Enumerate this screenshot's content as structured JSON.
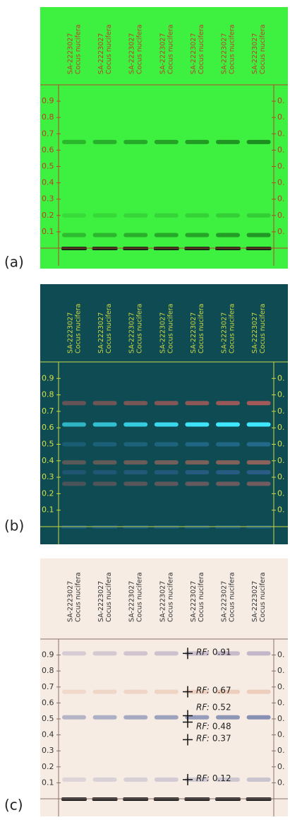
{
  "panels": [
    {
      "label": "(a)",
      "lanes": [
        {
          "id": "SA-2223027",
          "species": "Cocus nucifera"
        },
        {
          "id": "SA-2223027",
          "species": "Cocus nucifera"
        },
        {
          "id": "SA-2223027",
          "species": "Cocus nucifera"
        },
        {
          "id": "SA-2223027",
          "species": "Cocus nucifera"
        },
        {
          "id": "SA-2223027",
          "species": "Cocus nucifera"
        },
        {
          "id": "SA-2223027",
          "species": "Cocus nucifera"
        },
        {
          "id": "SA-2223027",
          "species": "Cocus nucifera"
        }
      ],
      "scale": [
        0.9,
        0.8,
        0.7,
        0.6,
        0.5,
        0.4,
        0.3,
        0.2,
        0.1
      ],
      "right_scale": [
        "0.",
        "0.",
        "0.",
        "0.",
        "0.",
        "0.",
        "0.",
        "0.",
        "0."
      ]
    },
    {
      "label": "(b)",
      "lanes": [
        {
          "id": "SA-2223027",
          "species": "Cocus nucifera"
        },
        {
          "id": "SA-2223027",
          "species": "Cocus nucifera"
        },
        {
          "id": "SA-2223027",
          "species": "Cocus nucifera"
        },
        {
          "id": "SA-2223027",
          "species": "Cocus nucifera"
        },
        {
          "id": "SA-2223027",
          "species": "Cocus nucifera"
        },
        {
          "id": "SA-2223027",
          "species": "Cocus nucifera"
        },
        {
          "id": "SA-2223027",
          "species": "Cocus nucifera"
        }
      ],
      "scale": [
        0.9,
        0.8,
        0.7,
        0.6,
        0.5,
        0.4,
        0.3,
        0.2,
        0.1
      ],
      "right_scale": [
        "0.",
        "0.",
        "0.",
        "0.",
        "0.",
        "0.",
        "0.",
        "0.",
        "0."
      ]
    },
    {
      "label": "(c)",
      "lanes": [
        {
          "id": "SA-2223027",
          "species": "Cocus nucifera"
        },
        {
          "id": "SA-2223027",
          "species": "Cocus nucifera"
        },
        {
          "id": "SA-2223027",
          "species": "Cocus nucifera"
        },
        {
          "id": "SA-2223027",
          "species": "Cocus nucifera"
        },
        {
          "id": "SA-2223027",
          "species": "Cocus nucifera"
        },
        {
          "id": "SA-2223027",
          "species": "Cocus nucifera"
        },
        {
          "id": "SA-2223027",
          "species": "Cocus nucifera"
        }
      ],
      "scale": [
        0.9,
        0.8,
        0.7,
        0.6,
        0.5,
        0.4,
        0.3,
        0.2,
        0.1
      ],
      "right_scale": [
        "0.",
        "0.",
        "0.",
        "0.",
        "0.",
        "0.",
        "0.",
        "0.",
        "0."
      ],
      "annotations": [
        {
          "label": "RF:",
          "value": 0.91
        },
        {
          "label": "RF:",
          "value": 0.67
        },
        {
          "label": "RF:",
          "value": 0.52
        },
        {
          "label": "RF:",
          "value": 0.48
        },
        {
          "label": "RF:",
          "value": 0.37
        },
        {
          "label": "RF:",
          "value": 0.12
        }
      ]
    }
  ]
}
